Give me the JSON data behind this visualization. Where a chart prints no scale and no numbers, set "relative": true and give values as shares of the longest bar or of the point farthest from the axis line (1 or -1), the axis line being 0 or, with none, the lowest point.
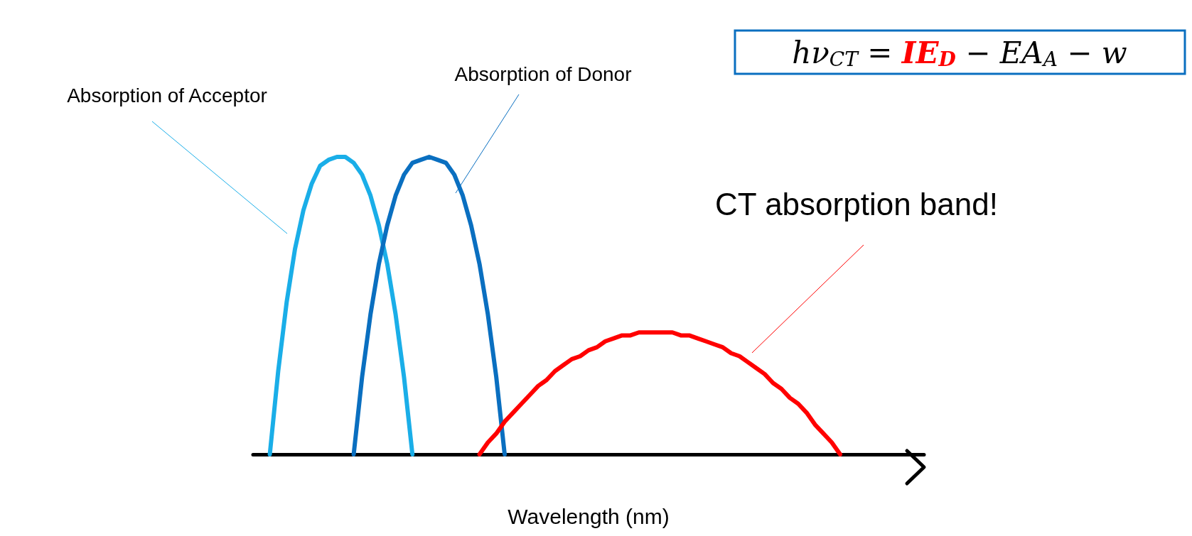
{
  "chart_data": {
    "type": "line",
    "relative": true,
    "xlabel": "Wavelength (nm)",
    "annotations": [
      "hν$_{CT}$ = IE$_{D}$ − EA$_{A}$ − w"
    ],
    "categories": [
      null,
      null,
      null,
      null,
      null,
      null,
      null,
      null,
      null,
      null,
      null,
      null,
      null,
      null,
      null,
      null,
      null,
      null,
      null,
      null,
      null,
      null,
      null,
      null,
      null,
      null,
      null,
      null,
      null,
      null,
      null,
      null,
      null,
      null,
      null,
      null,
      null,
      null,
      null,
      null,
      null,
      null,
      null,
      null,
      null,
      null,
      null,
      null,
      null,
      null,
      null,
      null,
      null,
      null,
      null,
      null,
      null,
      null,
      null,
      null,
      null,
      null,
      null,
      null,
      null,
      null,
      null,
      null,
      null,
      null,
      null,
      null,
      null,
      null,
      null,
      null,
      null,
      null,
      null,
      null,
      null
    ],
    "series": [
      {
        "name": "Absorption of Acceptor",
        "color": "#1aaee8",
        "values": [
          null,
          null,
          0,
          0.28,
          0.51,
          0.69,
          0.82,
          0.91,
          0.97,
          0.99,
          1,
          1,
          0.98,
          0.94,
          0.87,
          0.77,
          0.64,
          0.47,
          0.26,
          0,
          null,
          null,
          null,
          null,
          null,
          null,
          null,
          null,
          null,
          null,
          null,
          null,
          null,
          null,
          null,
          null,
          null,
          null,
          null,
          null,
          null,
          null,
          null,
          null,
          null,
          null,
          null,
          null,
          null,
          null,
          null,
          null,
          null,
          null,
          null,
          null,
          null,
          null,
          null,
          null,
          null,
          null,
          null,
          null,
          null,
          null,
          null,
          null,
          null,
          null,
          null,
          null,
          null,
          null,
          null,
          null,
          null,
          null,
          null,
          null,
          null
        ]
      },
      {
        "name": "Absorption of Donor",
        "color": "#0a6fc0",
        "values": [
          null,
          null,
          null,
          null,
          null,
          null,
          null,
          null,
          null,
          null,
          null,
          null,
          0,
          0.26,
          0.47,
          0.64,
          0.77,
          0.87,
          0.94,
          0.98,
          0.99,
          1,
          0.99,
          0.98,
          0.94,
          0.87,
          0.77,
          0.64,
          0.47,
          0.26,
          0,
          null,
          null,
          null,
          null,
          null,
          null,
          null,
          null,
          null,
          null,
          null,
          null,
          null,
          null,
          null,
          null,
          null,
          null,
          null,
          null,
          null,
          null,
          null,
          null,
          null,
          null,
          null,
          null,
          null,
          null,
          null,
          null,
          null,
          null,
          null,
          null,
          null,
          null,
          null,
          null,
          null,
          null,
          null,
          null,
          null,
          null,
          null,
          null,
          null,
          null
        ]
      },
      {
        "name": "CT absorption band!",
        "color": "#ff0000",
        "values": [
          null,
          null,
          null,
          null,
          null,
          null,
          null,
          null,
          null,
          null,
          null,
          null,
          null,
          null,
          null,
          null,
          null,
          null,
          null,
          null,
          null,
          null,
          null,
          null,
          null,
          null,
          null,
          0,
          0.04,
          0.07,
          0.11,
          0.14,
          0.17,
          0.2,
          0.23,
          0.25,
          0.28,
          0.3,
          0.32,
          0.33,
          0.35,
          0.36,
          0.38,
          0.39,
          0.4,
          0.4,
          0.41,
          0.41,
          0.41,
          0.41,
          0.41,
          0.4,
          0.4,
          0.39,
          0.38,
          0.37,
          0.36,
          0.34,
          0.33,
          0.31,
          0.29,
          0.27,
          0.24,
          0.22,
          0.19,
          0.17,
          0.14,
          0.1,
          0.07,
          0.04,
          0,
          null,
          null,
          null,
          null,
          null,
          null,
          null,
          null,
          null,
          null
        ]
      }
    ]
  }
}
